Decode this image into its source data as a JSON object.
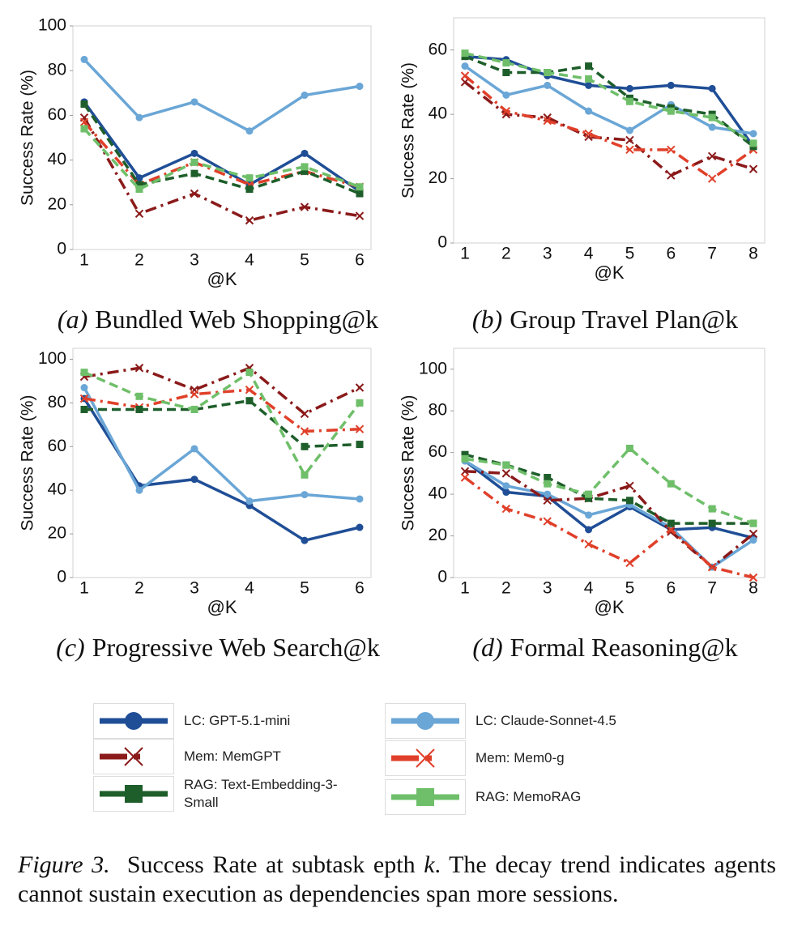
{
  "chart_data": [
    {
      "type": "line",
      "caption_label": "(a)",
      "caption": "Bundled Web Shopping@k",
      "x_label": "@K",
      "y_label": "Success Rate (%)",
      "categories": [
        "1",
        "2",
        "3",
        "4",
        "5",
        "6"
      ],
      "ylim": [
        0,
        100
      ],
      "yticks": [
        0,
        20,
        40,
        60,
        80,
        100
      ],
      "series": [
        {
          "name": "LC: GPT-5.1-mini",
          "color": "#1f4e96",
          "style": "solid",
          "marker": "circle",
          "values": [
            66,
            32,
            43,
            29,
            43,
            26
          ]
        },
        {
          "name": "LC: Claude-Sonnet-4.5",
          "color": "#6aa6d6",
          "style": "solid",
          "marker": "circle",
          "values": [
            85,
            59,
            66,
            53,
            69,
            73
          ]
        },
        {
          "name": "Mem: MemGPT",
          "color": "#8b1a1a",
          "style": "dashdot",
          "marker": "x",
          "values": [
            59,
            16,
            25,
            13,
            19,
            15
          ]
        },
        {
          "name": "Mem: Mem0-g",
          "color": "#e0402a",
          "style": "dashdot",
          "marker": "x",
          "values": [
            57,
            29,
            39,
            29,
            35,
            28
          ]
        },
        {
          "name": "RAG: Text-Embedding-3-Small",
          "color": "#1e5e2a",
          "style": "dashed",
          "marker": "square",
          "values": [
            65,
            29,
            34,
            27,
            35,
            25
          ]
        },
        {
          "name": "RAG: MemoRAG",
          "color": "#6fbf6a",
          "style": "dashed",
          "marker": "square",
          "values": [
            54,
            27,
            39,
            32,
            37,
            28
          ]
        }
      ]
    },
    {
      "type": "line",
      "caption_label": "(b)",
      "caption": "Group Travel Plan@k",
      "x_label": "@K",
      "y_label": "Success Rate (%)",
      "categories": [
        "1",
        "2",
        "3",
        "4",
        "5",
        "6",
        "7",
        "8"
      ],
      "ylim": [
        0,
        70
      ],
      "yticks": [
        0,
        20,
        40,
        60
      ],
      "series": [
        {
          "name": "LC: GPT-5.1-mini",
          "color": "#1f4e96",
          "style": "solid",
          "marker": "circle",
          "values": [
            58,
            57,
            52,
            49,
            48,
            49,
            48,
            30
          ]
        },
        {
          "name": "LC: Claude-Sonnet-4.5",
          "color": "#6aa6d6",
          "style": "solid",
          "marker": "circle",
          "values": [
            55,
            46,
            49,
            41,
            35,
            43,
            36,
            34
          ]
        },
        {
          "name": "Mem: MemGPT",
          "color": "#8b1a1a",
          "style": "dashdot",
          "marker": "x",
          "values": [
            50,
            40,
            39,
            33,
            32,
            21,
            27,
            23
          ]
        },
        {
          "name": "Mem: Mem0-g",
          "color": "#e0402a",
          "style": "dashdot",
          "marker": "x",
          "values": [
            52,
            41,
            38,
            34,
            29,
            29,
            20,
            29
          ]
        },
        {
          "name": "RAG: Text-Embedding-3-Small",
          "color": "#1e5e2a",
          "style": "dashed",
          "marker": "square",
          "values": [
            58,
            53,
            53,
            55,
            45,
            42,
            40,
            30
          ]
        },
        {
          "name": "RAG: MemoRAG",
          "color": "#6fbf6a",
          "style": "dashed",
          "marker": "square",
          "values": [
            59,
            56,
            53,
            51,
            44,
            41,
            39,
            31
          ]
        }
      ]
    },
    {
      "type": "line",
      "caption_label": "(c)",
      "caption": "Progressive Web Search@k",
      "x_label": "@K",
      "y_label": "Success Rate (%)",
      "categories": [
        "1",
        "2",
        "3",
        "4",
        "5",
        "6"
      ],
      "ylim": [
        0,
        105
      ],
      "yticks": [
        0,
        20,
        40,
        60,
        80,
        100
      ],
      "series": [
        {
          "name": "LC: GPT-5.1-mini",
          "color": "#1f4e96",
          "style": "solid",
          "marker": "circle",
          "values": [
            82,
            42,
            45,
            33,
            17,
            23
          ]
        },
        {
          "name": "LC: Claude-Sonnet-4.5",
          "color": "#6aa6d6",
          "style": "solid",
          "marker": "circle",
          "values": [
            87,
            40,
            59,
            35,
            38,
            36
          ]
        },
        {
          "name": "Mem: MemGPT",
          "color": "#8b1a1a",
          "style": "dashdot",
          "marker": "x",
          "values": [
            92,
            96,
            86,
            96,
            75,
            87
          ]
        },
        {
          "name": "Mem: Mem0-g",
          "color": "#e0402a",
          "style": "dashdot",
          "marker": "x",
          "values": [
            82,
            78,
            84,
            86,
            67,
            68
          ]
        },
        {
          "name": "RAG: Text-Embedding-3-Small",
          "color": "#1e5e2a",
          "style": "dashed",
          "marker": "square",
          "values": [
            77,
            77,
            77,
            81,
            60,
            61
          ]
        },
        {
          "name": "RAG: MemoRAG",
          "color": "#6fbf6a",
          "style": "dashed",
          "marker": "square",
          "values": [
            94,
            83,
            77,
            94,
            47,
            80
          ]
        }
      ]
    },
    {
      "type": "line",
      "caption_label": "(d)",
      "caption": "Formal Reasoning@k",
      "x_label": "@K",
      "y_label": "Success Rate (%)",
      "categories": [
        "1",
        "2",
        "3",
        "4",
        "5",
        "6",
        "7",
        "8"
      ],
      "ylim": [
        0,
        110
      ],
      "yticks": [
        0,
        20,
        40,
        60,
        80,
        100
      ],
      "series": [
        {
          "name": "LC: GPT-5.1-mini",
          "color": "#1f4e96",
          "style": "solid",
          "marker": "circle",
          "values": [
            56,
            41,
            39,
            23,
            34,
            23,
            24,
            19
          ]
        },
        {
          "name": "LC: Claude-Sonnet-4.5",
          "color": "#6aa6d6",
          "style": "solid",
          "marker": "circle",
          "values": [
            56,
            44,
            40,
            30,
            35,
            24,
            5,
            18
          ]
        },
        {
          "name": "Mem: MemGPT",
          "color": "#8b1a1a",
          "style": "dashdot",
          "marker": "x",
          "values": [
            51,
            50,
            37,
            38,
            44,
            22,
            5,
            21
          ]
        },
        {
          "name": "Mem: Mem0-g",
          "color": "#e0402a",
          "style": "dashdot",
          "marker": "x",
          "values": [
            48,
            33,
            27,
            16,
            7,
            23,
            5,
            0
          ]
        },
        {
          "name": "RAG: Text-Embedding-3-Small",
          "color": "#1e5e2a",
          "style": "dashed",
          "marker": "square",
          "values": [
            59,
            54,
            48,
            38,
            37,
            26,
            26,
            26
          ]
        },
        {
          "name": "RAG: MemoRAG",
          "color": "#6fbf6a",
          "style": "dashed",
          "marker": "square",
          "values": [
            57,
            54,
            45,
            40,
            62,
            45,
            33,
            26
          ]
        }
      ]
    }
  ],
  "figure_caption": {
    "label": "Figure 3.",
    "text_before": "Success Rate at subtask epth",
    "variable": "k",
    "text_after": ". The decay trend indicates agents cannot sustain execution as dependencies span more sessions."
  }
}
